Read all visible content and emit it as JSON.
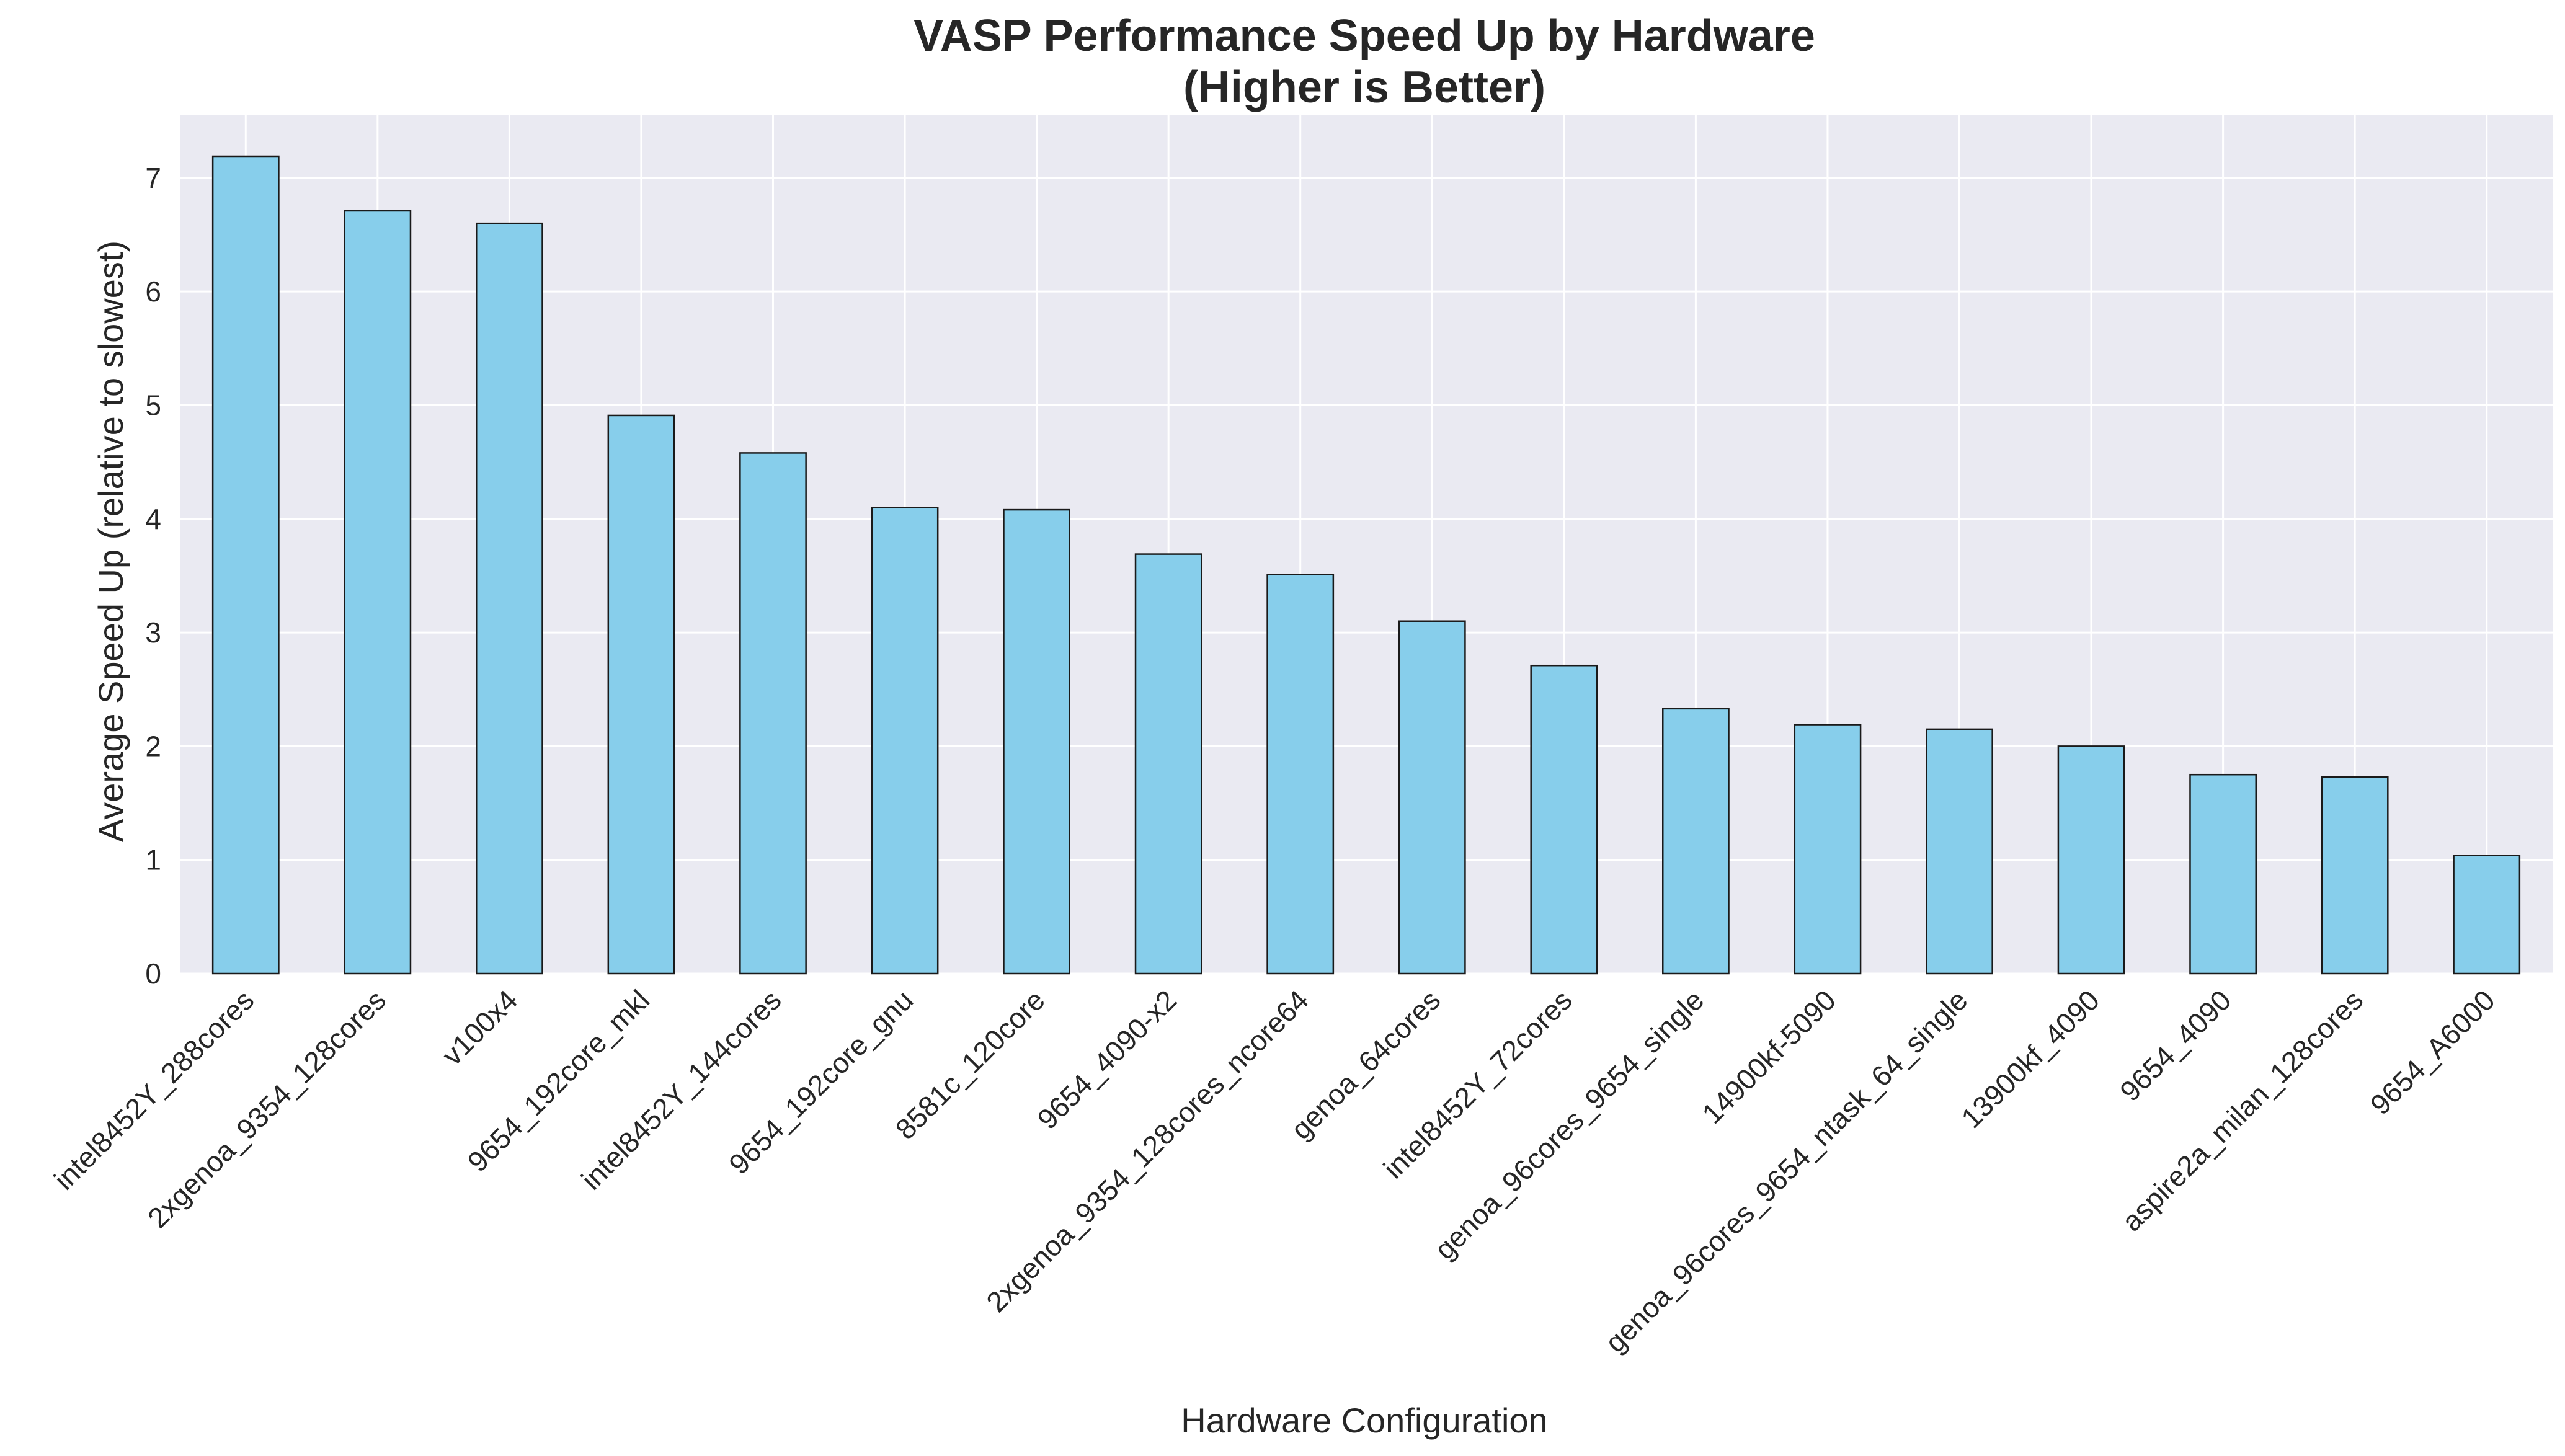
{
  "chart_data": {
    "type": "bar",
    "title": "VASP Performance Speed Up by Hardware",
    "subtitle": "(Higher is Better)",
    "xlabel": "Hardware Configuration",
    "ylabel": "Average Speed Up (relative to slowest)",
    "ylim": [
      0,
      7.55
    ],
    "yticks": [
      0,
      1,
      2,
      3,
      4,
      5,
      6,
      7
    ],
    "grid": true,
    "categories": [
      "intel8452Y_288cores",
      "2xgenoa_9354_128cores",
      "v100x4",
      "9654_192core_mkl",
      "intel8452Y_144cores",
      "9654_192core_gnu",
      "8581c_120core",
      "9654_4090-x2",
      "2xgenoa_9354_128cores_ncore64",
      "genoa_64cores",
      "intel8452Y_72cores",
      "genoa_96cores_9654_single",
      "14900kf-5090",
      "genoa_96cores_9654_ntask_64_single",
      "13900kf_4090",
      "9654_4090",
      "aspire2a_milan_128cores",
      "9654_A6000"
    ],
    "values": [
      7.19,
      6.71,
      6.6,
      4.91,
      4.58,
      4.1,
      4.08,
      3.69,
      3.51,
      3.1,
      2.71,
      2.33,
      2.19,
      2.15,
      2.0,
      1.75,
      1.73,
      1.04
    ],
    "colors": {
      "bar_fill": "#87CEEB",
      "bar_edge": "#1a1a1a",
      "plot_background": "#EAEAF2",
      "grid": "#FFFFFF",
      "text": "#262626"
    }
  }
}
